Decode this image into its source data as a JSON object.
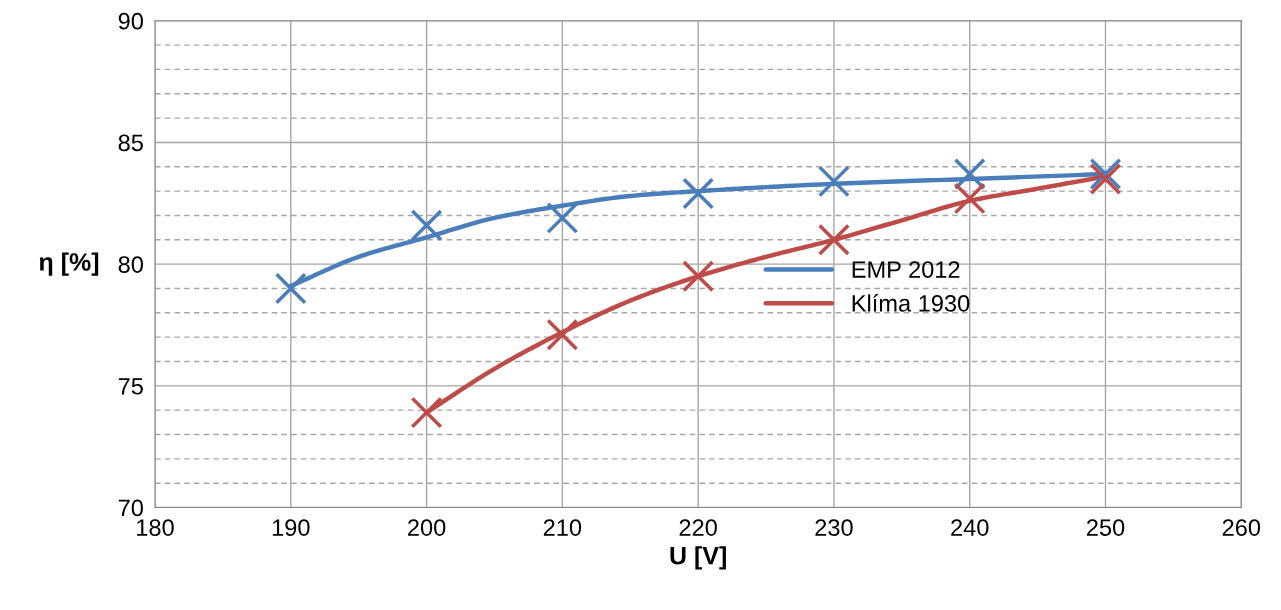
{
  "chart_data": {
    "type": "line",
    "xlabel": "U [V]",
    "ylabel": "η [%]",
    "series": [
      {
        "type": "scatter",
        "color": "#4a7ebb",
        "marker": "cross",
        "x": [
          190,
          200,
          210,
          220,
          230,
          240,
          250
        ],
        "values": [
          79.0,
          81.6,
          81.9,
          82.9,
          83.4,
          83.7,
          83.7
        ]
      },
      {
        "type": "scatter",
        "color": "#be4b48",
        "marker": "cross",
        "x": [
          200,
          210,
          220,
          230,
          240,
          250
        ],
        "values": [
          73.9,
          77.1,
          79.5,
          81.0,
          82.7,
          83.5
        ]
      },
      {
        "name": "EMP 2012",
        "color": "#4a7ebb",
        "marker": "none",
        "x": [
          190,
          195,
          200,
          205,
          210,
          215,
          220,
          230,
          240,
          250
        ],
        "values": [
          79.1,
          80.3,
          81.1,
          81.9,
          82.4,
          82.8,
          83.0,
          83.3,
          83.5,
          83.7
        ]
      },
      {
        "name": "Klíma 1930",
        "color": "#be4b48",
        "marker": "none",
        "x": [
          200,
          205,
          210,
          215,
          220,
          225,
          230,
          235,
          240,
          245,
          250
        ],
        "values": [
          73.9,
          75.7,
          77.2,
          78.5,
          79.5,
          80.3,
          81.0,
          81.8,
          82.6,
          83.1,
          83.6
        ]
      }
    ],
    "xlim": [
      180,
      260
    ],
    "xticks": [
      180,
      190,
      200,
      210,
      220,
      230,
      240,
      250,
      260
    ],
    "ylim": [
      70,
      90
    ],
    "yticks": [
      70,
      {
        "value": 71,
        "label": null
      },
      {
        "value": 72,
        "label": null
      },
      {
        "value": 73,
        "label": null
      },
      {
        "value": 74,
        "label": null
      },
      75,
      {
        "value": 76,
        "label": null
      },
      {
        "value": 77,
        "label": null
      },
      {
        "value": 78,
        "label": null
      },
      {
        "value": 79,
        "label": null
      },
      80,
      {
        "value": 81,
        "label": null
      },
      {
        "value": 82,
        "label": null
      },
      {
        "value": 83,
        "label": null
      },
      {
        "value": 84,
        "label": null
      },
      85,
      {
        "value": 86,
        "label": null
      },
      {
        "value": 87,
        "label": null
      },
      {
        "value": 88,
        "label": null
      },
      {
        "value": 89,
        "label": null
      },
      90
    ],
    "grid": true,
    "legend": "center right",
    "line_style": "solid"
  }
}
